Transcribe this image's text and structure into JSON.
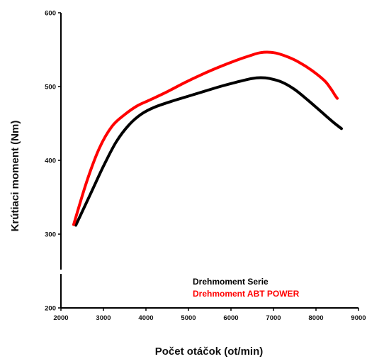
{
  "chart_data": {
    "type": "line",
    "title": "",
    "xlabel": "Počet otáčok (ot/min)",
    "ylabel": "Krútiaci moment (Nm)",
    "xlim": [
      2000,
      9000
    ],
    "ylim": [
      200,
      600
    ],
    "x_ticks": [
      2000,
      3000,
      4000,
      5000,
      6000,
      7000,
      8000,
      9000
    ],
    "y_ticks": [
      200,
      300,
      400,
      500,
      600
    ],
    "x_tick_labels": [
      "2000",
      "3000",
      "4000",
      "5000",
      "6000",
      "7000",
      "8000",
      "9000"
    ],
    "y_tick_labels": [
      "200",
      "300",
      "400",
      "500",
      "600"
    ],
    "grid": false,
    "legend_position": "bottom-right",
    "series": [
      {
        "name": "Drehmoment Serie",
        "color": "#000000",
        "x": [
          2350,
          2700,
          3000,
          3300,
          3600,
          3900,
          4200,
          4600,
          5000,
          5400,
          5800,
          6200,
          6500,
          6700,
          6900,
          7200,
          7500,
          7800,
          8100,
          8400,
          8600
        ],
        "y": [
          312,
          355,
          392,
          425,
          448,
          463,
          472,
          480,
          487,
          494,
          501,
          507,
          511,
          512,
          511,
          506,
          496,
          482,
          467,
          452,
          443
        ]
      },
      {
        "name": "Drehmoment ABT POWER",
        "color": "#ff0000",
        "x": [
          2300,
          2600,
          2900,
          3200,
          3500,
          3800,
          4100,
          4500,
          4900,
          5300,
          5700,
          6100,
          6400,
          6700,
          7000,
          7300,
          7600,
          7900,
          8200,
          8350,
          8450,
          8500
        ],
        "y": [
          313,
          370,
          416,
          446,
          462,
          474,
          482,
          493,
          505,
          516,
          526,
          535,
          541,
          546,
          546,
          541,
          533,
          522,
          508,
          497,
          488,
          484
        ]
      }
    ]
  }
}
